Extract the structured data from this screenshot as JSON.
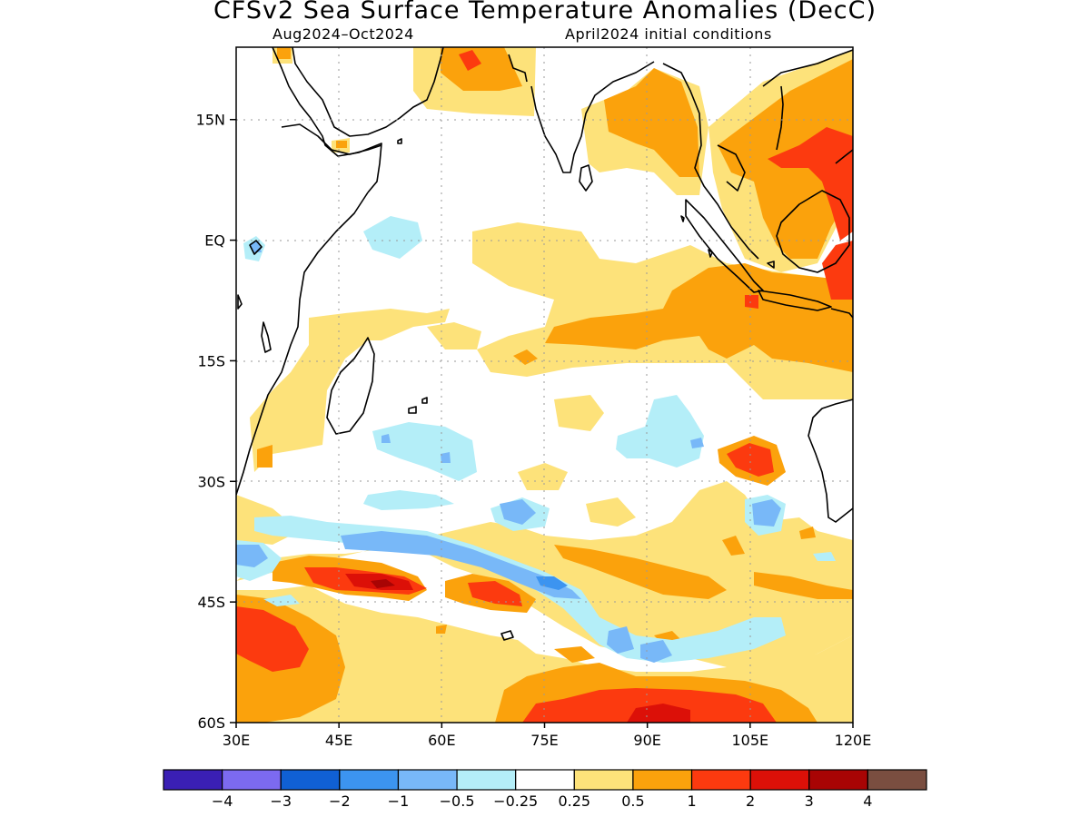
{
  "title": "CFSv2 Sea Surface Temperature Anomalies (DecC)",
  "period": "Aug2024–Oct2024",
  "init": "April2024 initial conditions",
  "lat_axis": {
    "labels": [
      "15N",
      "EQ",
      "15S",
      "30S",
      "45S",
      "60S"
    ],
    "values": [
      15,
      0,
      -15,
      -30,
      -45,
      -60
    ],
    "range": [
      -60,
      24
    ]
  },
  "lon_axis": {
    "labels": [
      "30E",
      "45E",
      "60E",
      "75E",
      "90E",
      "105E",
      "120E"
    ],
    "values": [
      30,
      45,
      60,
      75,
      90,
      105,
      120
    ],
    "range": [
      30,
      120
    ]
  },
  "colorbar": {
    "colors": [
      "#3a1fb4",
      "#7c6af0",
      "#1060d4",
      "#3c94f0",
      "#78b8f8",
      "#b4eef8",
      "#ffffff",
      "#fde27a",
      "#fba20c",
      "#fc3a0f",
      "#dc1008",
      "#a80404",
      "#7a4e40"
    ],
    "labels": [
      "−4",
      "−3",
      "−2",
      "−1",
      "−0.5",
      "−0.25",
      "0.25",
      "0.5",
      "1",
      "2",
      "3",
      "4"
    ]
  }
}
